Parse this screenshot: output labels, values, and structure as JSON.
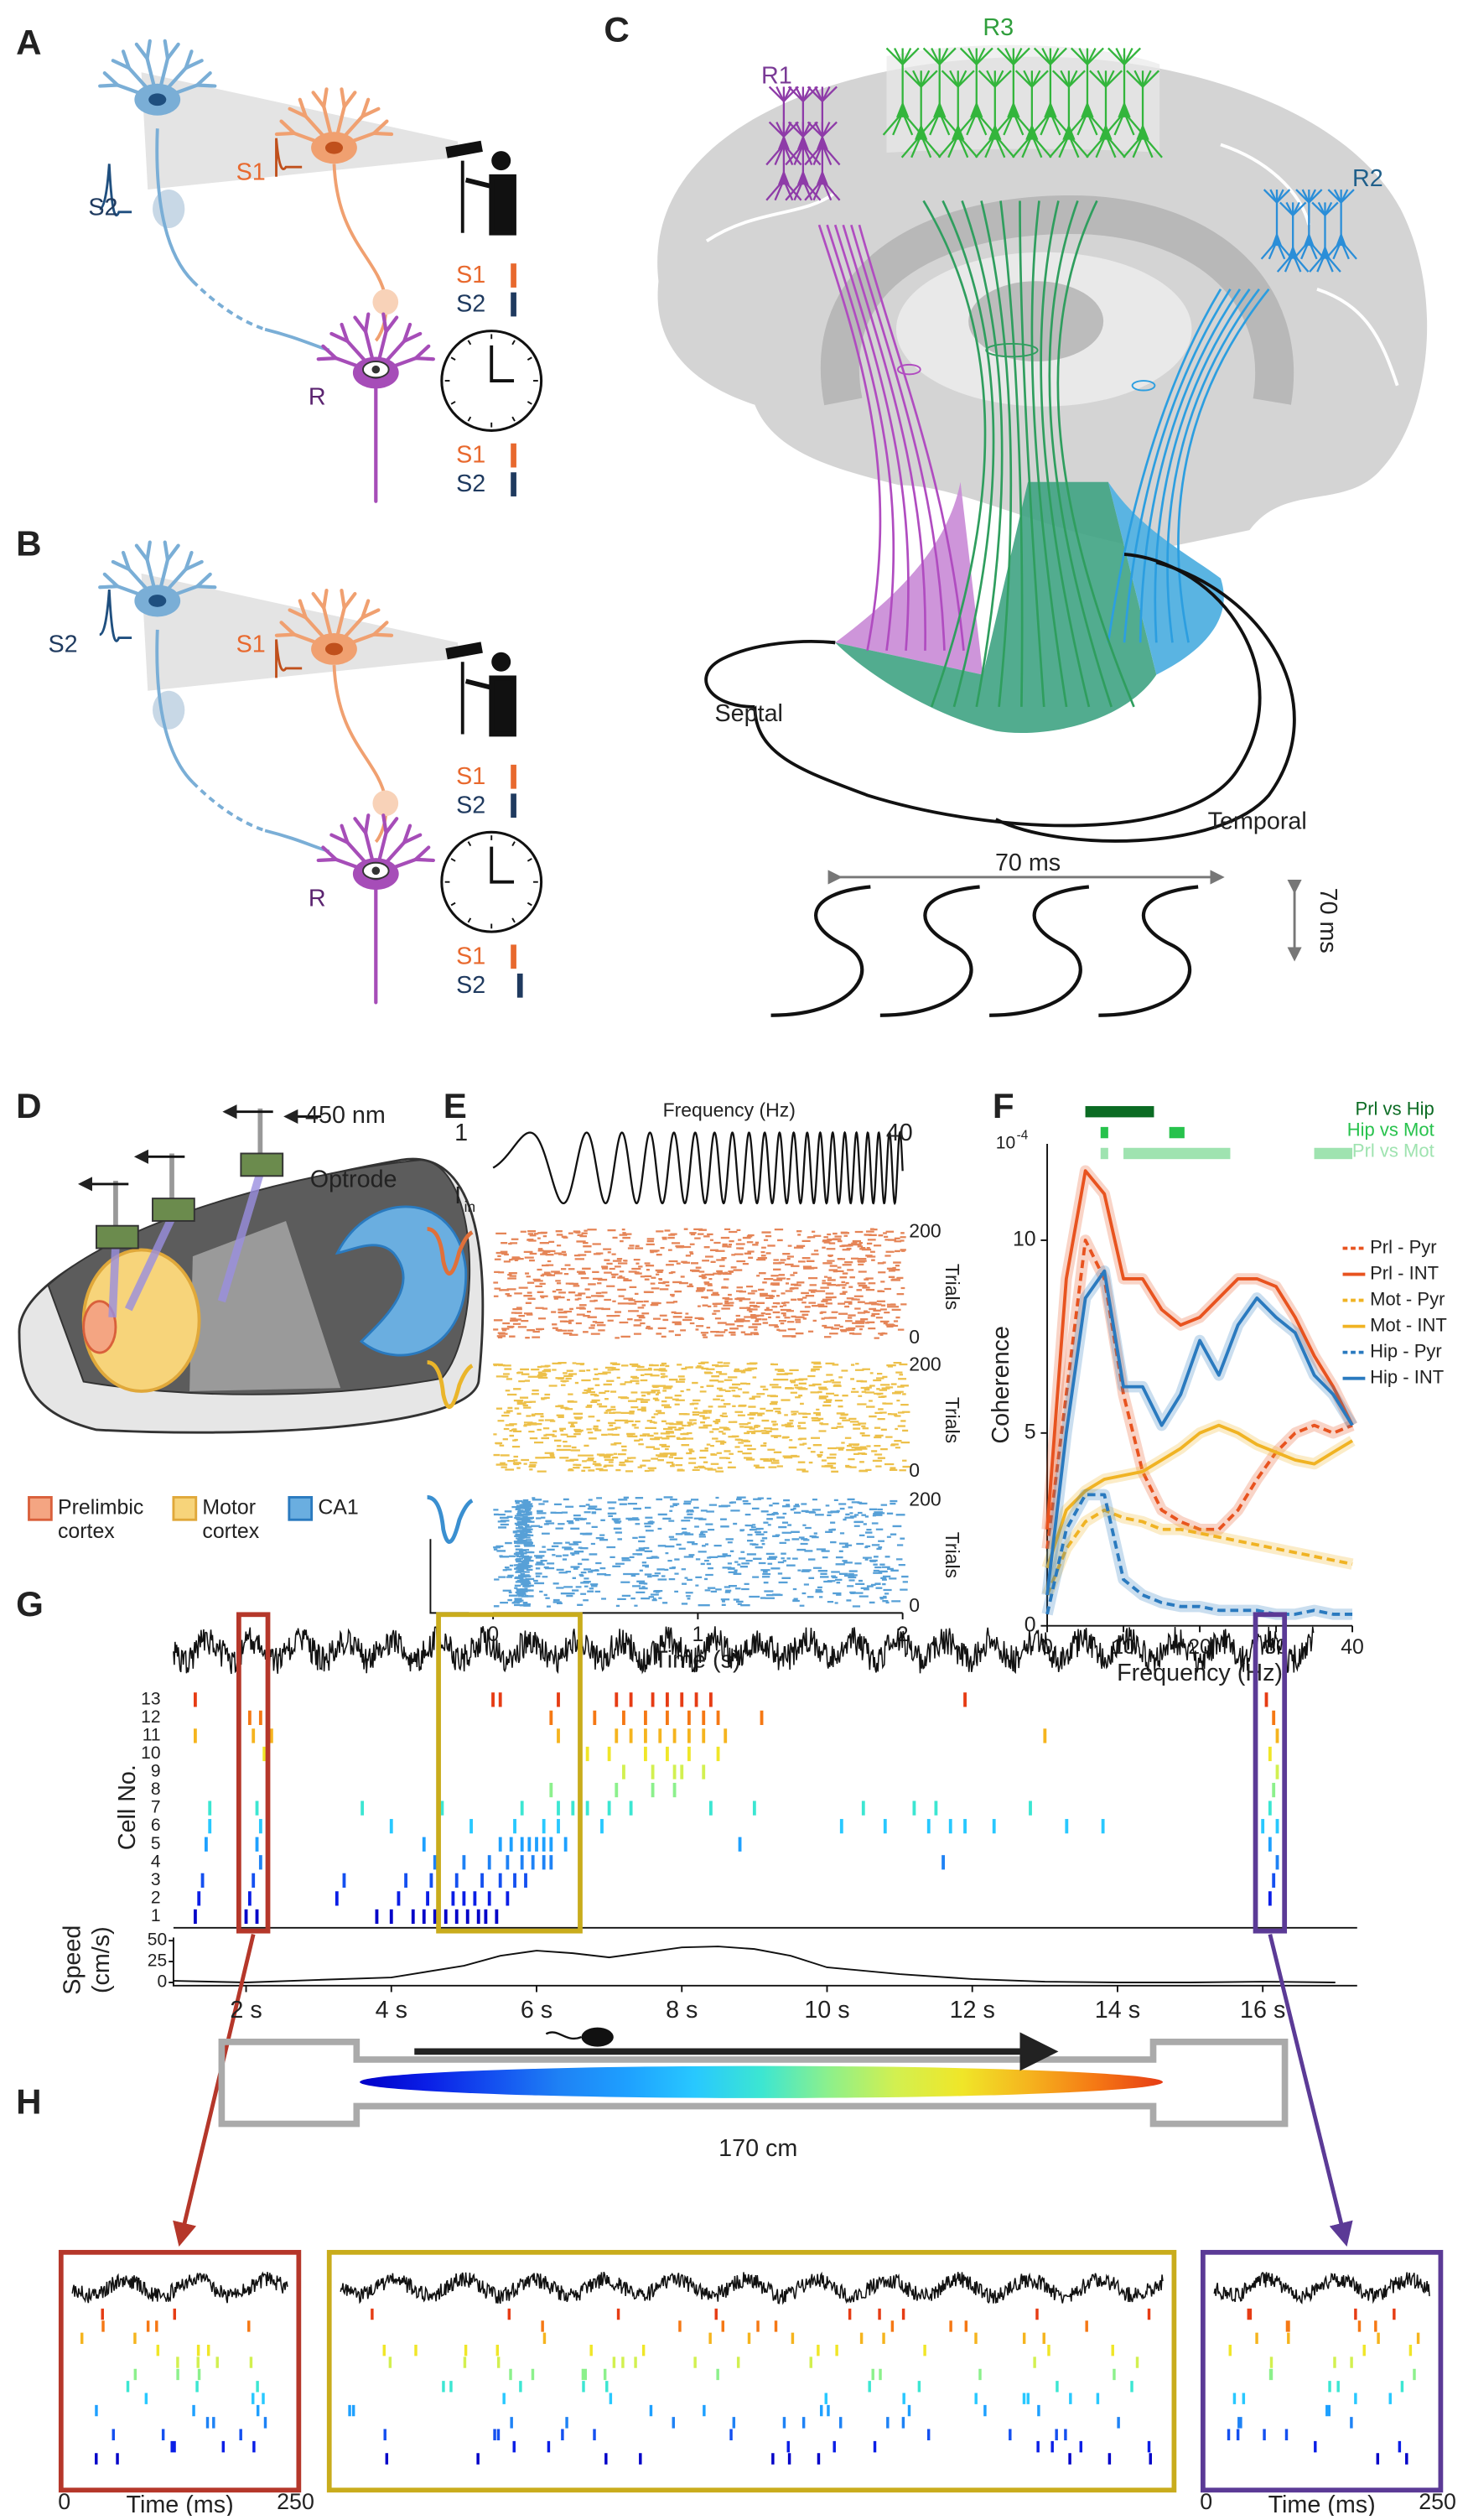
{
  "panel_a": {
    "label": "A",
    "labels": {
      "s2": "S2",
      "s1": "S1",
      "r": "R"
    },
    "order_before": [
      "S1",
      "S2"
    ],
    "order_after": [
      "S1",
      "S2"
    ]
  },
  "panel_b": {
    "label": "B",
    "labels": {
      "s2": "S2",
      "s1": "S1",
      "r": "R"
    },
    "order_before": [
      "S1",
      "S2"
    ],
    "order_after": [
      "S1",
      "S2"
    ]
  },
  "panel_c": {
    "label": "C",
    "regions": [
      "R1",
      "R3",
      "R2"
    ],
    "septal": "Septal",
    "temporal": "Temporal",
    "horizontal_scale": "70 ms",
    "vertical_scale": "70 ms"
  },
  "panel_d": {
    "label": "D",
    "wavelength": "450 nm",
    "probe": "Optrode",
    "legend": [
      {
        "lines": [
          "Prelimbic",
          "cortex"
        ],
        "color": "#f4a582"
      },
      {
        "lines": [
          "Motor",
          "cortex"
        ],
        "color": "#f7d47a"
      },
      {
        "lines": [
          "CA1"
        ],
        "color": "#6aaee0"
      }
    ]
  },
  "panel_e": {
    "label": "E",
    "title": "Frequency (Hz)",
    "freq_start": 1,
    "freq_end": 40,
    "input_label": "I",
    "input_sub": "in",
    "rasters": [
      {
        "color": "#e0703a",
        "label": "Trials",
        "yticks": [
          200,
          0
        ]
      },
      {
        "color": "#eab52a",
        "label": "Trials",
        "yticks": [
          200,
          0
        ]
      },
      {
        "color": "#3a8fd0",
        "label": "Trials",
        "yticks": [
          200,
          0
        ]
      }
    ],
    "xlabel": "Time (s)",
    "xlim": [
      0,
      2
    ],
    "xticks": [
      0,
      1,
      2
    ]
  },
  "panel_f": {
    "label": "F",
    "type": "line",
    "xlabel": "Frequency (Hz)",
    "ylabel": "Coherence",
    "y_scale": "10",
    "y_scale_exp": "-4",
    "xlim": [
      0,
      40
    ],
    "ylim": [
      0,
      12.5
    ],
    "xticks": [
      0,
      10,
      20,
      30,
      40
    ],
    "yticks": [
      0,
      5,
      10
    ],
    "x": [
      0,
      2.5,
      5,
      7.5,
      10,
      12.5,
      15,
      17.5,
      20,
      22.5,
      25,
      27.5,
      30,
      32.5,
      35,
      37.5,
      40
    ],
    "series": [
      {
        "name": "Prl - Pyr",
        "color": "#e8531f",
        "dash": true,
        "values": [
          2,
          6,
          10,
          9,
          6,
          4,
          3,
          2.7,
          2.5,
          2.5,
          3,
          3.8,
          4.5,
          5,
          5.2,
          5,
          5.2
        ]
      },
      {
        "name": "Prl - INT",
        "color": "#e8531f",
        "dash": false,
        "values": [
          2.5,
          9,
          11.8,
          11.2,
          9,
          9,
          8.2,
          7.8,
          8,
          8.5,
          9,
          9,
          8.8,
          8,
          7,
          6.2,
          5.2
        ]
      },
      {
        "name": "Mot - Pyr",
        "color": "#f0b323",
        "dash": true,
        "values": [
          0.8,
          2,
          2.7,
          3,
          2.8,
          2.7,
          2.5,
          2.5,
          2.4,
          2.3,
          2.2,
          2.1,
          2,
          1.9,
          1.8,
          1.7,
          1.6
        ]
      },
      {
        "name": "Mot - INT",
        "color": "#f0b323",
        "dash": false,
        "values": [
          1.5,
          3,
          3.5,
          3.8,
          3.9,
          4,
          4.3,
          4.6,
          5,
          5.2,
          5,
          4.7,
          4.5,
          4.3,
          4.2,
          4.5,
          4.8
        ]
      },
      {
        "name": "Hip - Pyr",
        "color": "#2a7abf",
        "dash": true,
        "values": [
          0.3,
          2.5,
          3.4,
          3.4,
          1.2,
          0.8,
          0.6,
          0.5,
          0.5,
          0.4,
          0.4,
          0.4,
          0.3,
          0.3,
          0.4,
          0.3,
          0.3
        ]
      },
      {
        "name": "Hip - INT",
        "color": "#2a7abf",
        "dash": false,
        "values": [
          0.8,
          5,
          8.5,
          9.2,
          6.2,
          6.2,
          5.2,
          6,
          7.4,
          6.5,
          7.8,
          8.5,
          8,
          7.6,
          6.5,
          6,
          5.2
        ]
      }
    ],
    "significance": [
      {
        "name": "Prl vs Hip",
        "color": "#0b6b23",
        "ranges": [
          [
            5,
            14
          ]
        ]
      },
      {
        "name": "Hip vs Mot",
        "color": "#27c24c",
        "ranges": [
          [
            7,
            8
          ],
          [
            16,
            18
          ]
        ]
      },
      {
        "name": "Prl vs Mot",
        "color": "#9fe3b0",
        "ranges": [
          [
            7,
            8
          ],
          [
            10,
            24
          ],
          [
            35,
            40
          ]
        ]
      }
    ]
  },
  "panel_g": {
    "label": "G",
    "ylabel": "Cell No.",
    "xlim": [
      1,
      17.3
    ],
    "xticks": [
      {
        "value": 2,
        "label": "2 s"
      },
      {
        "value": 4,
        "label": "4 s"
      },
      {
        "value": 6,
        "label": "6 s"
      },
      {
        "value": 8,
        "label": "8 s"
      },
      {
        "value": 10,
        "label": "10 s"
      },
      {
        "value": 12,
        "label": "12 s"
      },
      {
        "value": 14,
        "label": "14 s"
      },
      {
        "value": 16,
        "label": "16 s"
      }
    ],
    "cell_ticks": [
      1,
      2,
      3,
      4,
      5,
      6,
      7,
      8,
      9,
      10,
      11,
      12,
      13
    ],
    "cell_colors": [
      "#0000c8",
      "#0a1ee6",
      "#1450f0",
      "#1e82f5",
      "#1ea0ff",
      "#28c8ff",
      "#3ce6d2",
      "#8cf08c",
      "#d2f050",
      "#f0e628",
      "#f5b41e",
      "#f57814",
      "#e63c14"
    ],
    "spikes": [
      [
        1.3,
        2.0,
        2.15,
        3.8,
        4.0,
        4.3,
        4.45,
        4.6,
        4.75,
        4.9,
        5.05,
        5.2,
        5.3,
        5.45
      ],
      [
        1.35,
        2.05,
        3.25,
        4.1,
        4.5,
        4.85,
        5.0,
        5.15,
        5.35,
        5.6,
        16.1
      ],
      [
        1.4,
        2.1,
        3.35,
        4.2,
        4.55,
        4.9,
        5.25,
        5.5,
        5.7,
        5.85,
        16.15
      ],
      [
        2.2,
        4.6,
        5.0,
        5.35,
        5.6,
        5.8,
        5.95,
        6.1,
        6.2,
        11.6,
        16.2
      ],
      [
        1.45,
        2.15,
        2.3,
        4.45,
        5.5,
        5.65,
        5.8,
        5.9,
        6.0,
        6.1,
        6.2,
        6.4,
        8.8,
        16.1
      ],
      [
        1.5,
        2.2,
        4.0,
        5.1,
        5.7,
        6.1,
        6.3,
        6.6,
        6.9,
        10.2,
        10.8,
        11.4,
        11.7,
        11.9,
        12.3,
        13.3,
        13.8,
        16.0,
        16.2
      ],
      [
        1.5,
        2.15,
        3.6,
        4.7,
        5.8,
        6.3,
        6.5,
        6.7,
        7.0,
        7.3,
        8.4,
        9.0,
        10.5,
        11.2,
        11.5,
        12.8,
        16.1
      ],
      [
        6.2,
        6.6,
        7.1,
        7.6,
        7.9,
        16.15
      ],
      [
        7.2,
        7.6,
        7.9,
        8.0,
        8.3,
        16.2
      ],
      [
        2.25,
        6.7,
        7.0,
        7.5,
        7.8,
        8.1,
        8.5,
        16.1
      ],
      [
        1.3,
        2.1,
        2.35,
        6.3,
        7.1,
        7.3,
        7.5,
        7.7,
        7.9,
        8.1,
        8.3,
        8.6,
        13.0,
        16.2
      ],
      [
        2.05,
        2.2,
        6.2,
        6.8,
        7.2,
        7.5,
        7.8,
        8.1,
        8.3,
        8.5,
        9.1,
        16.15
      ],
      [
        1.3,
        2.3,
        5.4,
        5.5,
        6.3,
        6.6,
        7.1,
        7.3,
        7.6,
        7.8,
        8.0,
        8.2,
        8.4,
        11.9,
        16.05
      ]
    ],
    "speed": {
      "ylabel": "Speed",
      "yunit": "(cm/s)",
      "ylim": [
        0,
        50
      ],
      "yticks": [
        0,
        25,
        50
      ],
      "x": [
        1,
        2,
        3,
        4,
        5,
        5.5,
        6,
        6.5,
        7,
        7.5,
        8,
        8.5,
        9,
        9.5,
        10,
        11,
        12,
        13,
        14,
        15,
        16,
        17
      ],
      "values": [
        2,
        0,
        3,
        6,
        20,
        32,
        38,
        35,
        30,
        36,
        42,
        43,
        40,
        32,
        18,
        10,
        4,
        1,
        0,
        0,
        1,
        0
      ]
    }
  },
  "panel_h": {
    "label": "H",
    "track_length": "170 cm",
    "windows": [
      {
        "color": "#b5372a",
        "g_span": [
          1.9,
          2.3
        ],
        "time_label": "Time (ms)",
        "time_ticks": [
          0,
          250
        ]
      },
      {
        "color": "#c9ac1c",
        "g_span": [
          4.65,
          6.6
        ]
      },
      {
        "color": "#5b3a96",
        "g_span": [
          15.9,
          16.3
        ],
        "time_label": "Time (ms)",
        "time_ticks": [
          0,
          250
        ]
      }
    ]
  }
}
